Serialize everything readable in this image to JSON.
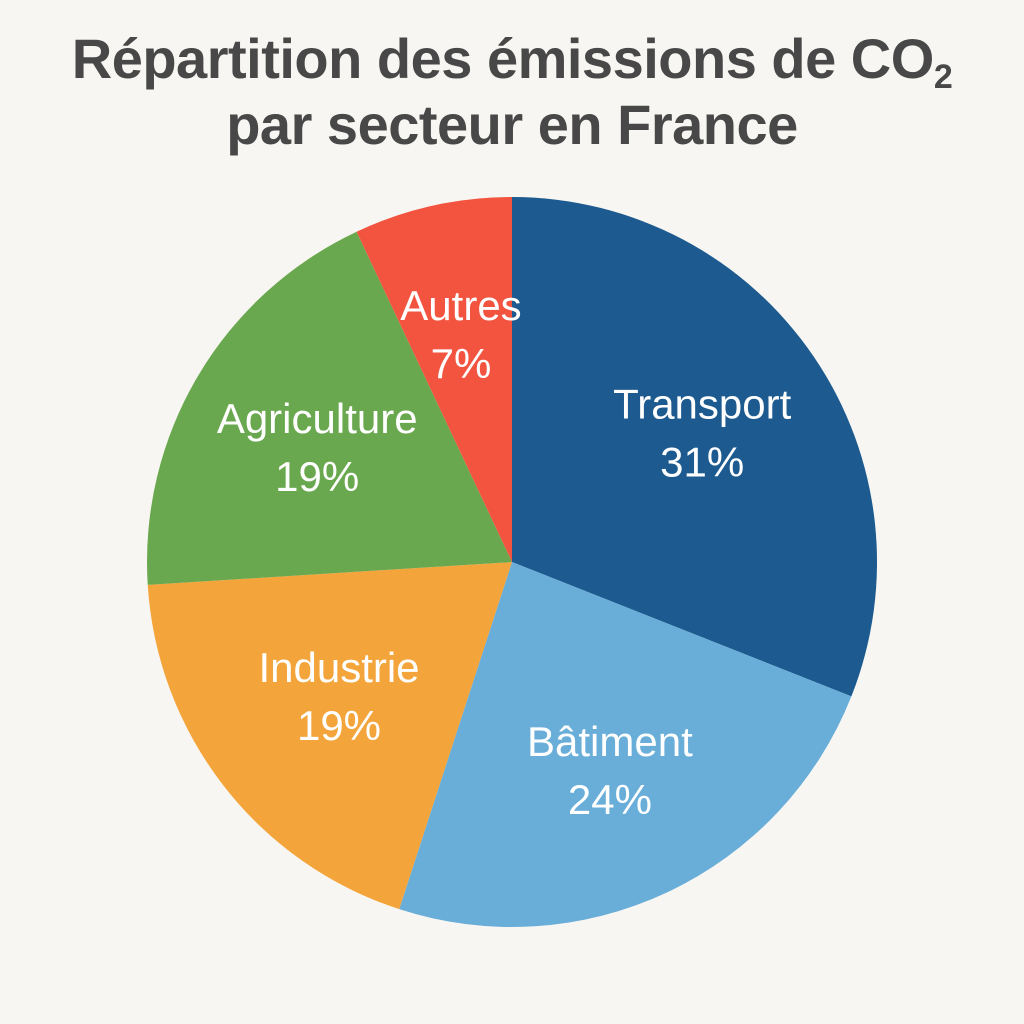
{
  "title": {
    "main": "Répartition des émissions de CO",
    "subscript": "2",
    "line2": "par secteur en France"
  },
  "chart_data": {
    "type": "pie",
    "title": "Répartition des émissions de CO₂ par secteur en France",
    "categories": [
      "Transport",
      "Bâtiment",
      "Industrie",
      "Agriculture",
      "Autres"
    ],
    "values": [
      31,
      24,
      19,
      19,
      7
    ],
    "value_labels": [
      "31%",
      "24%",
      "19%",
      "19%",
      "7%"
    ],
    "colors": [
      "#1c5a8f",
      "#69add9",
      "#f3a43a",
      "#6aa84f",
      "#f25440"
    ],
    "start_angle": "top, clockwise",
    "legend": "none"
  }
}
